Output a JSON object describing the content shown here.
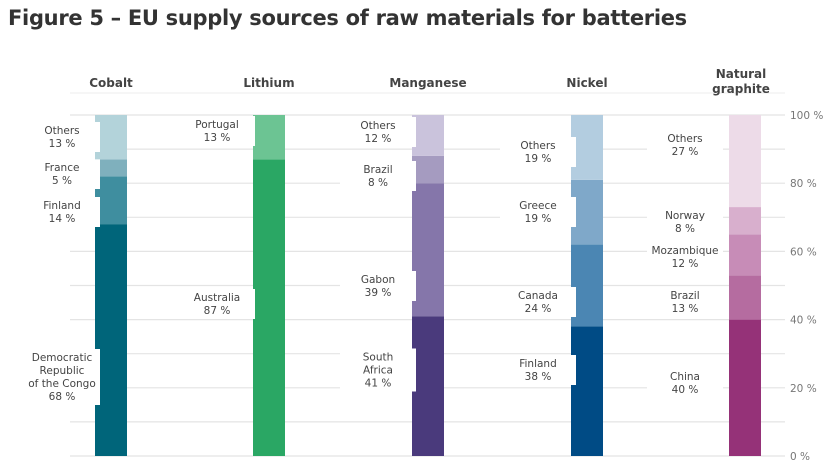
{
  "chart_data": {
    "type": "bar",
    "stacked": true,
    "title": "Figure 5 – EU supply sources of raw materials for batteries",
    "ylim": [
      0,
      100
    ],
    "y_ticks": [
      "0 %",
      "20 %",
      "40 %",
      "60 %",
      "80 %",
      "100 %"
    ],
    "grid": true,
    "categories": [
      "Cobalt",
      "Lithium",
      "Manganese",
      "Nickel",
      "Natural graphite"
    ],
    "stacks": [
      {
        "category": "Cobalt",
        "segments": [
          {
            "name": "Democratic Republic of the Congo",
            "value": 68,
            "label": "68 %",
            "color": "#00657a"
          },
          {
            "name": "Finland",
            "value": 14,
            "label": "14 %",
            "color": "#3f8e9f"
          },
          {
            "name": "France",
            "value": 5,
            "label": "5 %",
            "color": "#7fb0bd"
          },
          {
            "name": "Others",
            "value": 13,
            "label": "13 %",
            "color": "#b3d3da"
          }
        ]
      },
      {
        "category": "Lithium",
        "segments": [
          {
            "name": "Australia",
            "value": 87,
            "label": "87 %",
            "color": "#2aa764"
          },
          {
            "name": "Portugal",
            "value": 13,
            "label": "13 %",
            "color": "#6cc493"
          }
        ]
      },
      {
        "category": "Manganese",
        "segments": [
          {
            "name": "South Africa",
            "value": 41,
            "label": "41 %",
            "color": "#4a3a7c"
          },
          {
            "name": "Gabon",
            "value": 39,
            "label": "39 %",
            "color": "#8576aa"
          },
          {
            "name": "Brazil",
            "value": 8,
            "label": "8 %",
            "color": "#a59bc0"
          },
          {
            "name": "Others",
            "value": 12,
            "label": "12 %",
            "color": "#cac3dc"
          }
        ]
      },
      {
        "category": "Nickel",
        "segments": [
          {
            "name": "Finland",
            "value": 38,
            "label": "38 %",
            "color": "#004b85"
          },
          {
            "name": "Canada",
            "value": 24,
            "label": "24 %",
            "color": "#4b86b3"
          },
          {
            "name": "Greece",
            "value": 19,
            "label": "19 %",
            "color": "#7fa8c9"
          },
          {
            "name": "Others",
            "value": 19,
            "label": "19 %",
            "color": "#b3cde0"
          }
        ]
      },
      {
        "category": "Natural graphite",
        "segments": [
          {
            "name": "China",
            "value": 40,
            "label": "40 %",
            "color": "#953278"
          },
          {
            "name": "Brazil",
            "value": 13,
            "label": "13 %",
            "color": "#b56ca0"
          },
          {
            "name": "Mozambique",
            "value": 12,
            "label": "12 %",
            "color": "#c78cb7"
          },
          {
            "name": "Norway",
            "value": 8,
            "label": "8 %",
            "color": "#d8afcd"
          },
          {
            "name": "Others",
            "value": 27,
            "label": "27 %",
            "color": "#eddbe8"
          }
        ]
      }
    ]
  }
}
